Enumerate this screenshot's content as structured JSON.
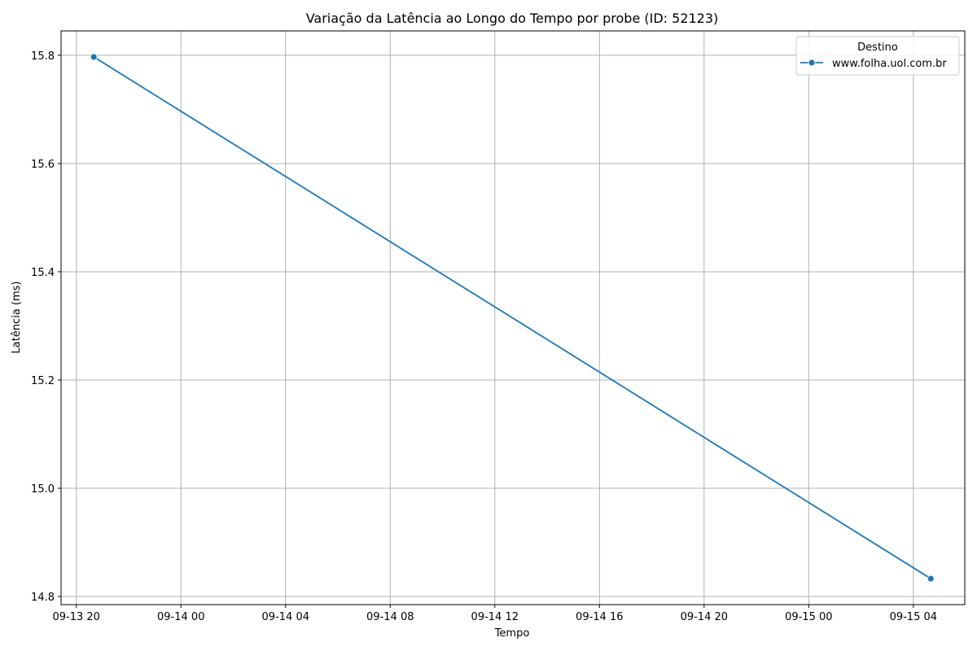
{
  "chart_data": {
    "type": "line",
    "title": "Variação da Latência ao Longo do Tempo por probe (ID: 52123)",
    "xlabel": "Tempo",
    "ylabel": "Latência (ms)",
    "x_axis": {
      "type": "datetime",
      "range": [
        "2024-09-13T19:25",
        "2024-09-15T05:58"
      ],
      "ticks": [
        {
          "value": "2024-09-13T20:00",
          "label": "09-13 20"
        },
        {
          "value": "2024-09-14T00:00",
          "label": "09-14 00"
        },
        {
          "value": "2024-09-14T04:00",
          "label": "09-14 04"
        },
        {
          "value": "2024-09-14T08:00",
          "label": "09-14 08"
        },
        {
          "value": "2024-09-14T12:00",
          "label": "09-14 12"
        },
        {
          "value": "2024-09-14T16:00",
          "label": "09-14 16"
        },
        {
          "value": "2024-09-14T20:00",
          "label": "09-14 20"
        },
        {
          "value": "2024-09-15T00:00",
          "label": "09-15 00"
        },
        {
          "value": "2024-09-15T04:00",
          "label": "09-15 04"
        }
      ]
    },
    "y_axis": {
      "range": [
        14.785,
        15.845
      ],
      "ticks": [
        {
          "value": 14.8,
          "label": "14.8"
        },
        {
          "value": 15.0,
          "label": "15.0"
        },
        {
          "value": 15.2,
          "label": "15.2"
        },
        {
          "value": 15.4,
          "label": "15.4"
        },
        {
          "value": 15.6,
          "label": "15.6"
        },
        {
          "value": 15.8,
          "label": "15.8"
        }
      ]
    },
    "grid": true,
    "legend": {
      "title": "Destino",
      "position": "top-right"
    },
    "series": [
      {
        "name": "www.folha.uol.com.br",
        "color": "#1f77b4",
        "marker": "circle",
        "points": [
          {
            "x": "2024-09-13T20:40",
            "y": 15.797
          },
          {
            "x": "2024-09-15T04:40",
            "y": 14.833
          }
        ]
      }
    ]
  }
}
